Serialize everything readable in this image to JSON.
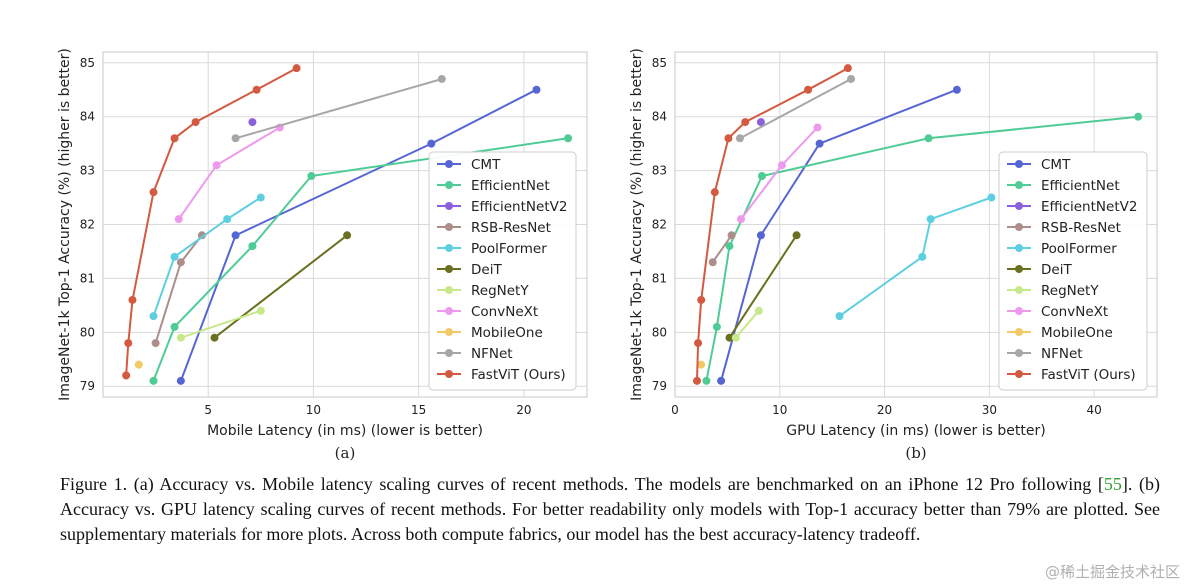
{
  "colors": {
    "CMT": "#5566d4",
    "EfficientNet": "#4fcc95",
    "EfficientNetV2": "#8b5fdd",
    "RSB-ResNet": "#ad8e8a",
    "PoolFormer": "#5ecfe0",
    "DeiT": "#6b7020",
    "RegNetY": "#c7e88b",
    "ConvNeXt": "#ee98ee",
    "MobileOne": "#f3c968",
    "NFNet": "#a7a7a7",
    "FastViT (Ours)": "#d35a40"
  },
  "chart_data": [
    {
      "type": "line",
      "panel_label": "(a)",
      "xlabel": "Mobile Latency (in ms) (lower is better)",
      "ylabel": "ImageNet-1k Top-1 Accuracy (%) (higher is better)",
      "xlim": [
        0,
        23
      ],
      "ylim": [
        78.8,
        85.2
      ],
      "xticks": [
        5,
        10,
        15,
        20
      ],
      "yticks": [
        79,
        80,
        81,
        82,
        83,
        84,
        85
      ],
      "grid": true,
      "legend_position": "center-right",
      "series": [
        {
          "name": "CMT",
          "x": [
            3.7,
            6.3,
            15.6,
            20.6
          ],
          "y": [
            79.1,
            81.8,
            83.5,
            84.5
          ]
        },
        {
          "name": "EfficientNet",
          "x": [
            2.4,
            3.4,
            7.1,
            9.9,
            22.1
          ],
          "y": [
            79.1,
            80.1,
            81.6,
            82.9,
            83.6
          ]
        },
        {
          "name": "EfficientNetV2",
          "x": [
            7.1
          ],
          "y": [
            83.9
          ]
        },
        {
          "name": "RSB-ResNet",
          "x": [
            2.5,
            3.7,
            4.7
          ],
          "y": [
            79.8,
            81.3,
            81.8
          ]
        },
        {
          "name": "PoolFormer",
          "x": [
            2.4,
            3.4,
            5.9,
            7.5
          ],
          "y": [
            80.3,
            81.4,
            82.1,
            82.5
          ]
        },
        {
          "name": "DeiT",
          "x": [
            5.3,
            11.6
          ],
          "y": [
            79.9,
            81.8
          ]
        },
        {
          "name": "RegNetY",
          "x": [
            3.7,
            7.5
          ],
          "y": [
            79.9,
            80.4
          ]
        },
        {
          "name": "ConvNeXt",
          "x": [
            3.6,
            5.4,
            8.4
          ],
          "y": [
            82.1,
            83.1,
            83.8
          ]
        },
        {
          "name": "MobileOne",
          "x": [
            1.7
          ],
          "y": [
            79.4
          ]
        },
        {
          "name": "NFNet",
          "x": [
            6.3,
            16.1
          ],
          "y": [
            83.6,
            84.7
          ]
        },
        {
          "name": "FastViT (Ours)",
          "x": [
            1.1,
            1.2,
            1.4,
            2.4,
            3.4,
            4.4,
            7.3,
            9.2
          ],
          "y": [
            79.2,
            79.8,
            80.6,
            82.6,
            83.6,
            83.9,
            84.5,
            84.9
          ]
        }
      ]
    },
    {
      "type": "line",
      "panel_label": "(b)",
      "xlabel": "GPU Latency (in ms) (lower is better)",
      "ylabel": "ImageNet-1k Top-1 Accuracy (%) (higher is better)",
      "xlim": [
        0,
        46
      ],
      "ylim": [
        78.8,
        85.2
      ],
      "xticks": [
        0,
        10,
        20,
        30,
        40
      ],
      "yticks": [
        79,
        80,
        81,
        82,
        83,
        84,
        85
      ],
      "grid": true,
      "legend_position": "right",
      "series": [
        {
          "name": "CMT",
          "x": [
            4.4,
            8.2,
            13.8,
            26.9
          ],
          "y": [
            79.1,
            81.8,
            83.5,
            84.5
          ]
        },
        {
          "name": "EfficientNet",
          "x": [
            3.0,
            4.0,
            5.2,
            8.3,
            24.2,
            44.2
          ],
          "y": [
            79.1,
            80.1,
            81.6,
            82.9,
            83.6,
            84.0
          ]
        },
        {
          "name": "EfficientNetV2",
          "x": [
            8.2
          ],
          "y": [
            83.9
          ]
        },
        {
          "name": "RSB-ResNet",
          "x": [
            3.6,
            5.4
          ],
          "y": [
            81.3,
            81.8
          ]
        },
        {
          "name": "PoolFormer",
          "x": [
            15.7,
            23.6,
            24.4,
            30.2
          ],
          "y": [
            80.3,
            81.4,
            82.1,
            82.5
          ]
        },
        {
          "name": "DeiT",
          "x": [
            5.2,
            11.6
          ],
          "y": [
            79.9,
            81.8
          ]
        },
        {
          "name": "RegNetY",
          "x": [
            5.8,
            8.0
          ],
          "y": [
            79.9,
            80.4
          ]
        },
        {
          "name": "ConvNeXt",
          "x": [
            6.3,
            10.2,
            13.6
          ],
          "y": [
            82.1,
            83.1,
            83.8
          ]
        },
        {
          "name": "MobileOne",
          "x": [
            2.5
          ],
          "y": [
            79.4
          ]
        },
        {
          "name": "NFNet",
          "x": [
            6.2,
            16.8
          ],
          "y": [
            83.6,
            84.7
          ]
        },
        {
          "name": "FastViT (Ours)",
          "x": [
            2.1,
            2.2,
            2.5,
            3.8,
            5.1,
            6.7,
            12.7,
            16.5
          ],
          "y": [
            79.1,
            79.8,
            80.6,
            82.6,
            83.6,
            83.9,
            84.5,
            84.9
          ]
        }
      ]
    }
  ],
  "caption": {
    "part1": "Figure 1. (a) Accuracy vs. Mobile latency scaling curves of recent methods. The models are benchmarked on an iPhone 12 Pro following [",
    "ref": "55",
    "part2": "]. (b) Accuracy vs. GPU latency scaling curves of recent methods. For better readability only models with Top-1 accuracy better than 79% are plotted. See supplementary materials for more plots. Across both compute fabrics, our model has the best accuracy-latency tradeoff."
  },
  "watermark": "@稀土掘金技术社区"
}
